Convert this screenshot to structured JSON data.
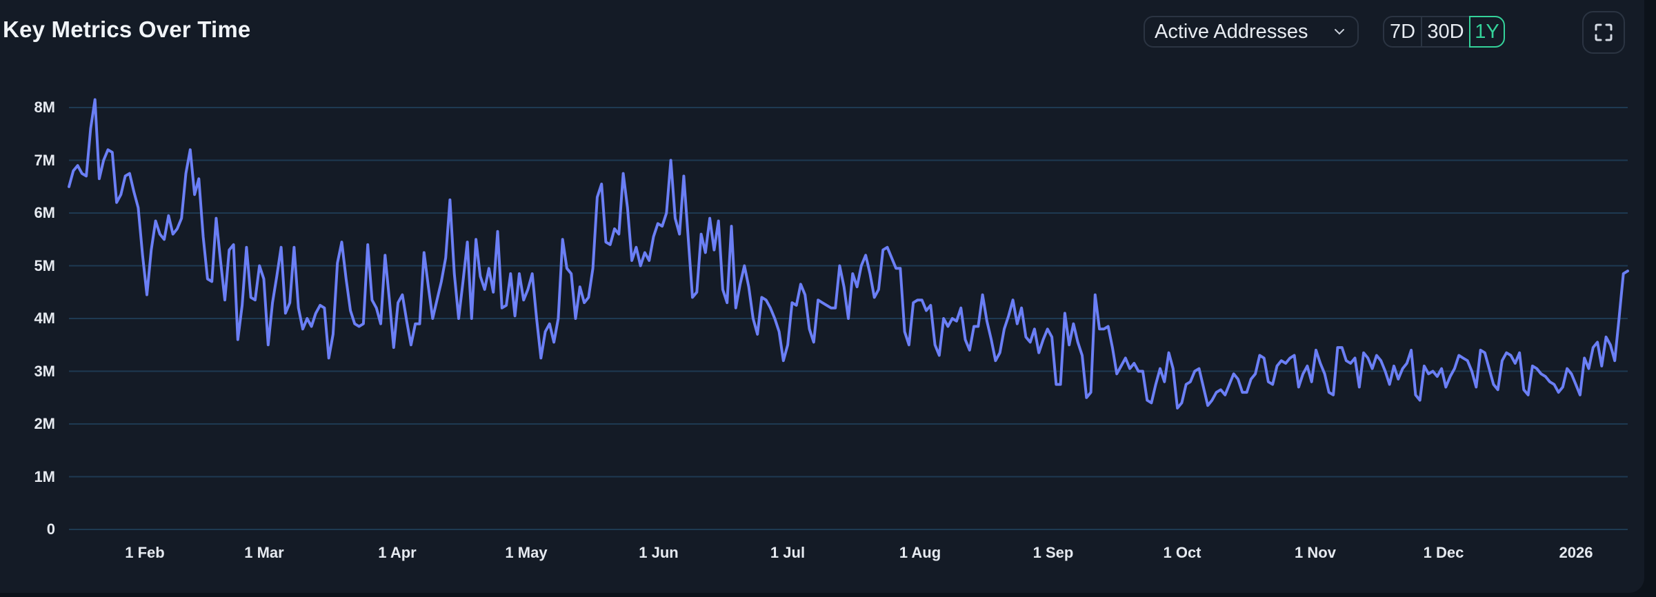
{
  "header": {
    "title": "Key Metrics Over Time",
    "metric_select": "Active Addresses",
    "ranges": [
      "7D",
      "30D",
      "1Y"
    ],
    "active_range": "1Y"
  },
  "icons": {
    "select": "chevron-down-icon",
    "fullscreen": "fullscreen-icon"
  },
  "colors": {
    "background": "#141b26",
    "line": "#6b7ff5",
    "grid": "#1e3a52",
    "accent": "#34d39a",
    "text": "#e6eaf0"
  },
  "chart_data": {
    "type": "line",
    "title": "Key Metrics Over Time",
    "series_name": "Active Addresses",
    "xlabel": "",
    "ylabel": "",
    "ylim": [
      0,
      8000000
    ],
    "yticks": [
      "0",
      "1M",
      "2M",
      "3M",
      "4M",
      "5M",
      "6M",
      "7M",
      "8M"
    ],
    "xticks": [
      "1 Feb",
      "1 Mar",
      "1 Apr",
      "1 May",
      "1 Jun",
      "1 Jul",
      "1 Aug",
      "1 Sep",
      "1 Oct",
      "1 Nov",
      "1 Dec",
      "2026"
    ],
    "grid": true,
    "legend": "none",
    "x_start": "2025-01-08",
    "x_end": "2026-01-10",
    "values_millions": [
      6.5,
      6.8,
      6.9,
      6.75,
      6.7,
      7.6,
      8.15,
      6.65,
      7.0,
      7.2,
      7.15,
      6.2,
      6.35,
      6.7,
      6.75,
      6.4,
      6.1,
      5.2,
      4.45,
      5.3,
      5.85,
      5.6,
      5.5,
      5.95,
      5.6,
      5.7,
      5.9,
      6.75,
      7.2,
      6.35,
      6.65,
      5.55,
      4.75,
      4.7,
      5.9,
      5.1,
      4.35,
      5.3,
      5.4,
      3.6,
      4.25,
      5.35,
      4.4,
      4.35,
      5.0,
      4.75,
      3.5,
      4.3,
      4.8,
      5.35,
      4.1,
      4.3,
      5.35,
      4.2,
      3.8,
      4.0,
      3.85,
      4.1,
      4.25,
      4.2,
      3.25,
      3.7,
      5.05,
      5.45,
      4.75,
      4.15,
      3.9,
      3.85,
      3.9,
      5.4,
      4.35,
      4.2,
      3.9,
      5.2,
      4.35,
      3.45,
      4.3,
      4.45,
      3.95,
      3.5,
      3.9,
      3.9,
      5.25,
      4.6,
      4.0,
      4.35,
      4.7,
      5.15,
      6.25,
      4.85,
      4.0,
      4.7,
      5.45,
      4.0,
      5.5,
      4.8,
      4.55,
      4.95,
      4.5,
      5.65,
      4.2,
      4.25,
      4.85,
      4.05,
      4.85,
      4.35,
      4.55,
      4.85,
      4.0,
      3.25,
      3.75,
      3.9,
      3.55,
      4.0,
      5.5,
      4.95,
      4.85,
      4.0,
      4.6,
      4.3,
      4.4,
      4.95,
      6.3,
      6.55,
      5.45,
      5.4,
      5.7,
      5.6,
      6.75,
      6.1,
      5.1,
      5.35,
      5.0,
      5.25,
      5.1,
      5.55,
      5.8,
      5.75,
      6.0,
      7.0,
      5.9,
      5.6,
      6.7,
      5.55,
      4.4,
      4.5,
      5.6,
      5.25,
      5.9,
      5.3,
      5.85,
      4.55,
      4.3,
      5.75,
      4.2,
      4.65,
      5.0,
      4.6,
      4.0,
      3.7,
      4.4,
      4.35,
      4.2,
      4.0,
      3.75,
      3.2,
      3.5,
      4.3,
      4.25,
      4.65,
      4.45,
      3.8,
      3.55,
      4.35,
      4.3,
      4.25,
      4.2,
      4.2,
      5.0,
      4.6,
      4.0,
      4.85,
      4.6,
      5.0,
      5.2,
      4.85,
      4.4,
      4.55,
      5.3,
      5.35,
      5.15,
      4.95,
      4.95,
      3.75,
      3.5,
      4.3,
      4.35,
      4.35,
      4.15,
      4.25,
      3.5,
      3.3,
      4.0,
      3.85,
      4.0,
      3.95,
      4.2,
      3.6,
      3.4,
      3.85,
      3.85,
      4.45,
      3.95,
      3.6,
      3.2,
      3.35,
      3.8,
      4.05,
      4.35,
      3.9,
      4.2,
      3.65,
      3.55,
      3.8,
      3.35,
      3.6,
      3.8,
      3.65,
      2.75,
      2.75,
      4.1,
      3.5,
      3.9,
      3.55,
      3.3,
      2.5,
      2.6,
      4.45,
      3.8,
      3.8,
      3.85,
      3.45,
      2.95,
      3.1,
      3.25,
      3.05,
      3.15,
      3.0,
      3.0,
      2.45,
      2.4,
      2.75,
      3.05,
      2.8,
      3.35,
      3.05,
      2.3,
      2.4,
      2.75,
      2.8,
      3.0,
      3.05,
      2.7,
      2.35,
      2.45,
      2.6,
      2.65,
      2.55,
      2.75,
      2.95,
      2.85,
      2.6,
      2.6,
      2.85,
      2.95,
      3.3,
      3.25,
      2.8,
      2.75,
      3.1,
      3.2,
      3.15,
      3.25,
      3.3,
      2.7,
      2.95,
      3.1,
      2.8,
      3.4,
      3.15,
      2.95,
      2.6,
      2.55,
      3.45,
      3.45,
      3.2,
      3.15,
      3.25,
      2.7,
      3.35,
      3.25,
      3.05,
      3.3,
      3.2,
      3.0,
      2.75,
      3.1,
      2.85,
      3.05,
      3.15,
      3.4,
      2.55,
      2.45,
      3.1,
      2.95,
      3.0,
      2.9,
      3.05,
      2.7,
      2.9,
      3.05,
      3.3,
      3.25,
      3.2,
      3.0,
      2.7,
      3.4,
      3.35,
      3.05,
      2.75,
      2.65,
      3.2,
      3.35,
      3.3,
      3.15,
      3.35,
      2.65,
      2.55,
      3.1,
      3.05,
      2.95,
      2.9,
      2.8,
      2.75,
      2.6,
      2.7,
      3.05,
      2.95,
      2.75,
      2.55,
      3.25,
      3.05,
      3.45,
      3.55,
      3.1,
      3.65,
      3.5,
      3.2,
      4.0,
      4.85,
      4.9
    ]
  }
}
